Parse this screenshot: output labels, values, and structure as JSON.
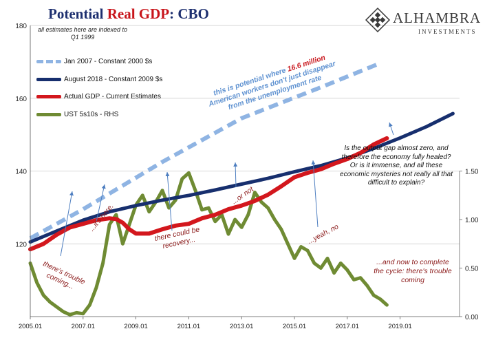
{
  "title": {
    "part1": "Potential",
    "part2": "Real GDP",
    "part3": ":  CBO"
  },
  "logo": {
    "name": "ALHAMBRA",
    "sub": "INVESTMENTS"
  },
  "note": "all estimates here are indexed to Q1 1999",
  "colors": {
    "jan2007": "#8fb4e3",
    "aug2018": "#172f6e",
    "actual": "#d3171d",
    "ust": "#6f8b33",
    "anno_red": "#8b1a1a",
    "anno_blue": "#5f92d1",
    "arrow": "#4d7ec0"
  },
  "annotations": {
    "potential_pre": "this is potential where ",
    "potential_hl": "16.6 million",
    "potential_l2": "American workers don't just disappear",
    "potential_l3": "from the unemployment rate",
    "trouble_coming": "there's trouble coming...",
    "its_here": "...it's here.",
    "could_be_recovery": "there could be recovery...",
    "or_not": "...or not",
    "yeah_no": "...yeah, no",
    "complete_cycle": "...and now to complete the cycle: there's trouble coming",
    "output_gap": "Is the output gap almost zero, and therefore the economy fully healed? Or is it immense, and all these economic mysteries not really all that difficult to explain?"
  },
  "chart_data": {
    "type": "line",
    "title": "Potential Real GDP:  CBO",
    "xlim": [
      2005.0,
      2021.25
    ],
    "ylim": [
      100,
      180
    ],
    "y2lim": [
      0,
      3.0
    ],
    "x_ticks": [
      "2005.01",
      "2007.01",
      "2009.01",
      "2011.01",
      "2013.01",
      "2015.01",
      "2017.01",
      "2019.01"
    ],
    "x_tick_values": [
      2005,
      2007,
      2009,
      2011,
      2013,
      2015,
      2017,
      2019
    ],
    "y_ticks": [
      120,
      140,
      160,
      180
    ],
    "y2_ticks": [
      "0.00",
      "0.50",
      "1.00",
      "1.50"
    ],
    "y2_tick_values": [
      0,
      0.5,
      1.0,
      1.5
    ],
    "legend_position": "top-left",
    "series": [
      {
        "name": "Jan 2007 - Constant 2000 $s",
        "axis": "left",
        "style": "dashed",
        "x": [
          2005.0,
          2007.0,
          2010.0,
          2013.0,
          2016.0,
          2018.1
        ],
        "y": [
          121.5,
          129.5,
          142.5,
          154.5,
          163.0,
          169.2
        ]
      },
      {
        "name": "August 2018 - Constant 2009 $s",
        "axis": "left",
        "style": "solid",
        "x": [
          2005.0,
          2006.0,
          2007.0,
          2008.0,
          2009.0,
          2010.0,
          2011.0,
          2012.0,
          2013.0,
          2014.0,
          2015.0,
          2016.0,
          2017.0,
          2018.0,
          2019.0,
          2020.0,
          2021.0
        ],
        "y": [
          120.5,
          123.5,
          126.5,
          128.8,
          130.5,
          132.0,
          133.3,
          134.8,
          136.4,
          138.0,
          139.8,
          141.5,
          143.6,
          146.2,
          149.1,
          152.2,
          155.8
        ]
      },
      {
        "name": "Actual GDP - Current Estimates",
        "axis": "left",
        "style": "solid",
        "x": [
          2005.0,
          2005.5,
          2006.0,
          2006.5,
          2007.0,
          2007.5,
          2008.0,
          2008.25,
          2008.5,
          2008.75,
          2009.0,
          2009.5,
          2010.0,
          2010.5,
          2011.0,
          2011.5,
          2012.0,
          2012.5,
          2013.0,
          2013.5,
          2014.0,
          2014.5,
          2015.0,
          2015.5,
          2016.0,
          2016.5,
          2017.0,
          2017.5,
          2018.0,
          2018.5
        ],
        "y": [
          118.5,
          120.0,
          122.5,
          124.5,
          125.5,
          126.5,
          127.0,
          126.8,
          125.8,
          124.0,
          122.8,
          122.8,
          124.0,
          125.0,
          125.5,
          127.0,
          128.0,
          129.5,
          130.5,
          131.8,
          133.5,
          135.8,
          138.3,
          139.5,
          140.5,
          142.0,
          143.3,
          145.0,
          147.3,
          149.0
        ]
      },
      {
        "name": "UST 5s10s - RHS",
        "axis": "right",
        "style": "solid",
        "x": [
          2005.0,
          2005.25,
          2005.5,
          2005.75,
          2006.0,
          2006.25,
          2006.5,
          2006.75,
          2007.0,
          2007.25,
          2007.5,
          2007.75,
          2008.0,
          2008.25,
          2008.5,
          2008.75,
          2009.0,
          2009.25,
          2009.5,
          2009.75,
          2010.0,
          2010.25,
          2010.5,
          2010.75,
          2011.0,
          2011.25,
          2011.5,
          2011.75,
          2012.0,
          2012.25,
          2012.5,
          2012.75,
          2013.0,
          2013.25,
          2013.5,
          2013.75,
          2014.0,
          2014.25,
          2014.5,
          2014.75,
          2015.0,
          2015.25,
          2015.5,
          2015.75,
          2016.0,
          2016.25,
          2016.5,
          2016.75,
          2017.0,
          2017.25,
          2017.5,
          2017.75,
          2018.0,
          2018.25,
          2018.5
        ],
        "y": [
          0.55,
          0.35,
          0.22,
          0.15,
          0.1,
          0.05,
          0.02,
          0.04,
          0.03,
          0.12,
          0.3,
          0.55,
          0.95,
          1.05,
          0.75,
          0.95,
          1.15,
          1.25,
          1.08,
          1.18,
          1.3,
          1.12,
          1.2,
          1.42,
          1.48,
          1.3,
          1.1,
          1.12,
          0.98,
          1.05,
          0.85,
          1.0,
          0.92,
          1.05,
          1.28,
          1.18,
          1.12,
          1.0,
          0.9,
          0.75,
          0.6,
          0.72,
          0.68,
          0.55,
          0.5,
          0.6,
          0.45,
          0.55,
          0.48,
          0.38,
          0.4,
          0.32,
          0.22,
          0.18,
          0.12
        ]
      }
    ]
  }
}
